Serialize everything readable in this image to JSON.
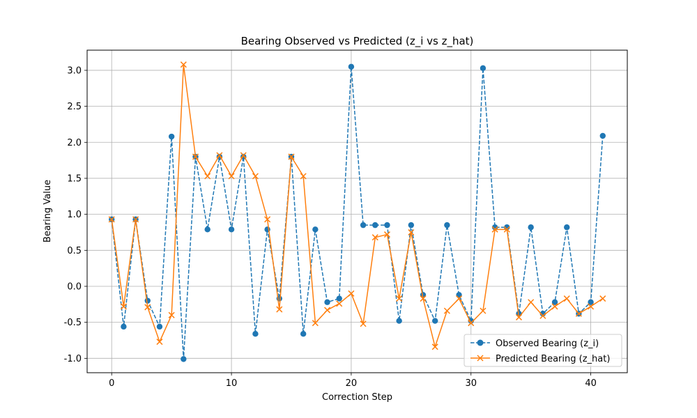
{
  "chart_data": {
    "type": "line",
    "title": "Bearing Observed vs Predicted (z_i vs z_hat)",
    "xlabel": "Correction Step",
    "ylabel": "Bearing Value",
    "xlim": [
      -2.05,
      43.05
    ],
    "ylim": [
      -1.2,
      3.28
    ],
    "xticks": [
      0,
      10,
      20,
      30,
      40
    ],
    "yticks": [
      -1.0,
      -0.5,
      0.0,
      0.5,
      1.0,
      1.5,
      2.0,
      2.5,
      3.0
    ],
    "grid": true,
    "legend_position": "bottom-right",
    "x": [
      0,
      1,
      2,
      3,
      4,
      5,
      6,
      7,
      8,
      9,
      10,
      11,
      12,
      13,
      14,
      15,
      16,
      17,
      18,
      19,
      20,
      21,
      22,
      23,
      24,
      25,
      26,
      27,
      28,
      29,
      30,
      31,
      32,
      33,
      34,
      35,
      36,
      37,
      38,
      39,
      40,
      41
    ],
    "series": [
      {
        "name": "Observed Bearing (z_i)",
        "color": "#1f77b4",
        "line_style": "dashed",
        "marker": "circle",
        "values": [
          0.93,
          -0.56,
          0.93,
          -0.2,
          -0.56,
          2.08,
          -1.01,
          1.8,
          0.79,
          1.8,
          0.79,
          1.8,
          -0.66,
          0.79,
          -0.17,
          1.8,
          -0.66,
          0.79,
          -0.22,
          -0.17,
          3.05,
          0.85,
          0.85,
          0.85,
          -0.48,
          0.85,
          -0.12,
          -0.48,
          0.85,
          -0.12,
          -0.48,
          3.03,
          0.82,
          0.82,
          -0.38,
          0.82,
          -0.38,
          -0.22,
          0.82,
          -0.38,
          -0.22,
          2.09
        ]
      },
      {
        "name": "Predicted Bearing (z_hat)",
        "color": "#ff7f0e",
        "line_style": "solid",
        "marker": "x",
        "values": [
          0.93,
          -0.28,
          0.93,
          -0.29,
          -0.77,
          -0.4,
          3.08,
          1.8,
          1.53,
          1.82,
          1.53,
          1.82,
          1.53,
          0.93,
          -0.32,
          1.8,
          1.53,
          -0.51,
          -0.33,
          -0.24,
          -0.1,
          -0.52,
          0.68,
          0.72,
          -0.17,
          0.75,
          -0.17,
          -0.84,
          -0.34,
          -0.17,
          -0.51,
          -0.34,
          0.79,
          0.79,
          -0.43,
          -0.22,
          -0.41,
          -0.28,
          -0.17,
          -0.38,
          -0.28,
          -0.17
        ]
      }
    ]
  }
}
